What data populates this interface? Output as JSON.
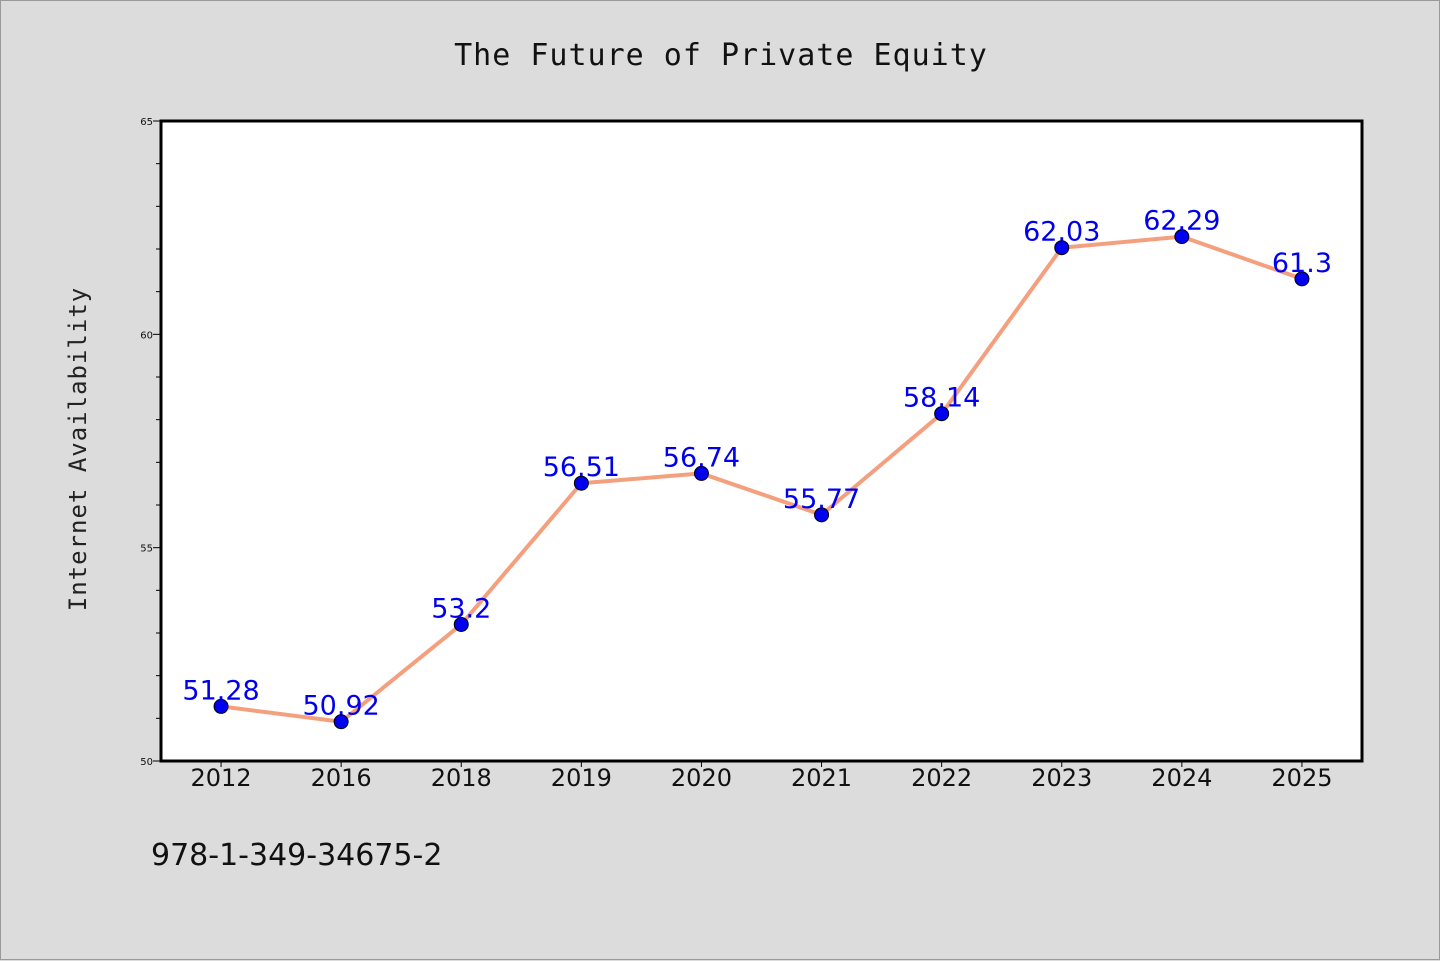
{
  "chart_data": {
    "type": "line",
    "title": "The Future of Private Equity",
    "xlabel": "",
    "ylabel": "Internet Availability",
    "categories": [
      "2012",
      "2016",
      "2018",
      "2019",
      "2020",
      "2021",
      "2022",
      "2023",
      "2024",
      "2025"
    ],
    "series": [
      {
        "values": [
          51.28,
          50.92,
          53.2,
          56.51,
          56.74,
          55.77,
          58.14,
          62.03,
          62.29,
          61.3
        ],
        "data_labels": [
          "51.28",
          "50.92",
          "53.2",
          "56.51",
          "56.74",
          "55.77",
          "58.14",
          "62.03",
          "62.29",
          "61.3"
        ]
      }
    ],
    "ylim": [
      50,
      65
    ],
    "yticks": [
      "50",
      "55",
      "60",
      "65"
    ],
    "grid": false,
    "line_color": "#f4a07e",
    "marker_color": "#0000ee",
    "label_color": "#0000ee"
  },
  "footer": {
    "isbn": "978-1-349-34675-2"
  }
}
